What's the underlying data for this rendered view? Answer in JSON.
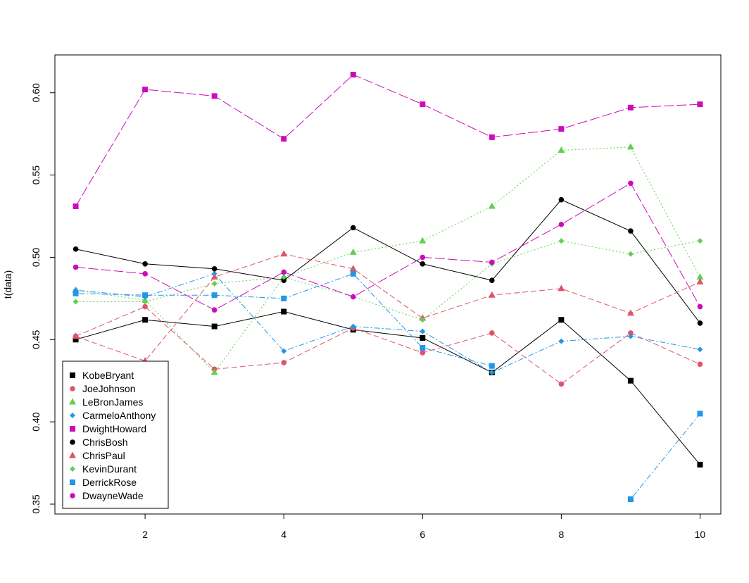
{
  "chart_data": {
    "type": "line",
    "title": "",
    "xlabel": "",
    "ylabel": "t(data)",
    "xlim": [
      0.7,
      10.3
    ],
    "ylim": [
      0.344,
      0.623
    ],
    "x_ticks": [
      "2",
      "4",
      "6",
      "8",
      "10"
    ],
    "y_ticks": [
      "0.35",
      "0.40",
      "0.45",
      "0.50",
      "0.55",
      "0.60"
    ],
    "grid": false,
    "legend_position": "bottom-left",
    "x": [
      1,
      2,
      3,
      4,
      5,
      6,
      7,
      8,
      9,
      10
    ],
    "series": [
      {
        "name": "KobeBryant",
        "color": "#000000",
        "marker": "square",
        "dash": "",
        "values": [
          0.45,
          0.462,
          0.458,
          0.467,
          0.456,
          0.451,
          0.43,
          0.462,
          0.425,
          0.374
        ]
      },
      {
        "name": "JoeJohnson",
        "color": "#DF536B",
        "marker": "circle",
        "dash": "8,4",
        "values": [
          0.452,
          0.47,
          0.432,
          0.436,
          0.457,
          0.442,
          0.454,
          0.423,
          0.454,
          0.435
        ]
      },
      {
        "name": "LeBronJames",
        "color": "#61D04F",
        "marker": "triangle",
        "dash": "2,3",
        "values": [
          0.48,
          0.474,
          0.43,
          0.488,
          0.503,
          0.51,
          0.531,
          0.565,
          0.567,
          0.488
        ]
      },
      {
        "name": "CarmeloAnthony",
        "color": "#2297E6",
        "marker": "diamond",
        "dash": "2,3,8,3",
        "values": [
          0.48,
          0.476,
          0.49,
          0.443,
          0.458,
          0.455,
          0.43,
          0.449,
          0.452,
          0.444
        ]
      },
      {
        "name": "DwightHoward",
        "color": "#CD0BBC",
        "marker": "square",
        "dash": "14,4",
        "values": [
          0.531,
          0.602,
          0.598,
          0.572,
          0.611,
          0.593,
          0.573,
          0.578,
          0.591,
          0.593
        ]
      },
      {
        "name": "ChrisBosh",
        "color": "#000000",
        "marker": "circle",
        "dash": "",
        "values": [
          0.505,
          0.496,
          0.493,
          0.486,
          0.518,
          0.496,
          0.486,
          0.535,
          0.516,
          0.46
        ]
      },
      {
        "name": "ChrisPaul",
        "color": "#DF536B",
        "marker": "triangle",
        "dash": "8,4",
        "values": [
          0.452,
          0.437,
          0.488,
          0.502,
          0.493,
          0.463,
          0.477,
          0.481,
          0.466,
          0.485
        ]
      },
      {
        "name": "KevinDurant",
        "color": "#61D04F",
        "marker": "diamond",
        "dash": "2,3",
        "values": [
          0.473,
          0.473,
          0.484,
          0.488,
          0.476,
          0.462,
          0.496,
          0.51,
          0.502,
          0.51
        ]
      },
      {
        "name": "DerrickRose",
        "color": "#2297E6",
        "marker": "square",
        "dash": "2,3,8,3",
        "values": [
          0.478,
          0.477,
          0.477,
          0.475,
          0.49,
          0.445,
          0.434,
          null,
          0.353,
          0.405
        ]
      },
      {
        "name": "DwayneWade",
        "color": "#CD0BBC",
        "marker": "circle",
        "dash": "14,4",
        "values": [
          0.494,
          0.49,
          0.468,
          0.491,
          0.476,
          0.5,
          0.497,
          0.52,
          0.545,
          0.47
        ]
      }
    ]
  }
}
